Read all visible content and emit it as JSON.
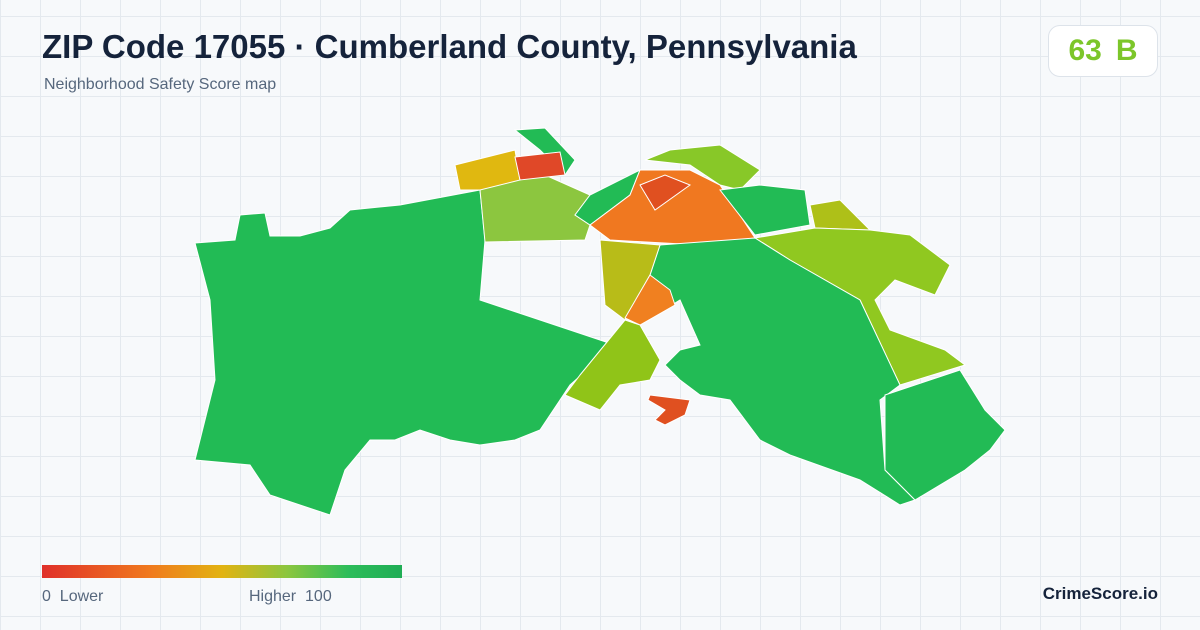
{
  "header": {
    "title": "ZIP Code 17055 · Cumberland County, Pennsylvania",
    "subtitle": "Neighborhood Safety Score map"
  },
  "score": {
    "value": 63,
    "grade": "B"
  },
  "legend": {
    "min": 0,
    "min_label": "Lower",
    "max_label": "Higher",
    "max": 100
  },
  "brand": "CrimeScore.io"
}
